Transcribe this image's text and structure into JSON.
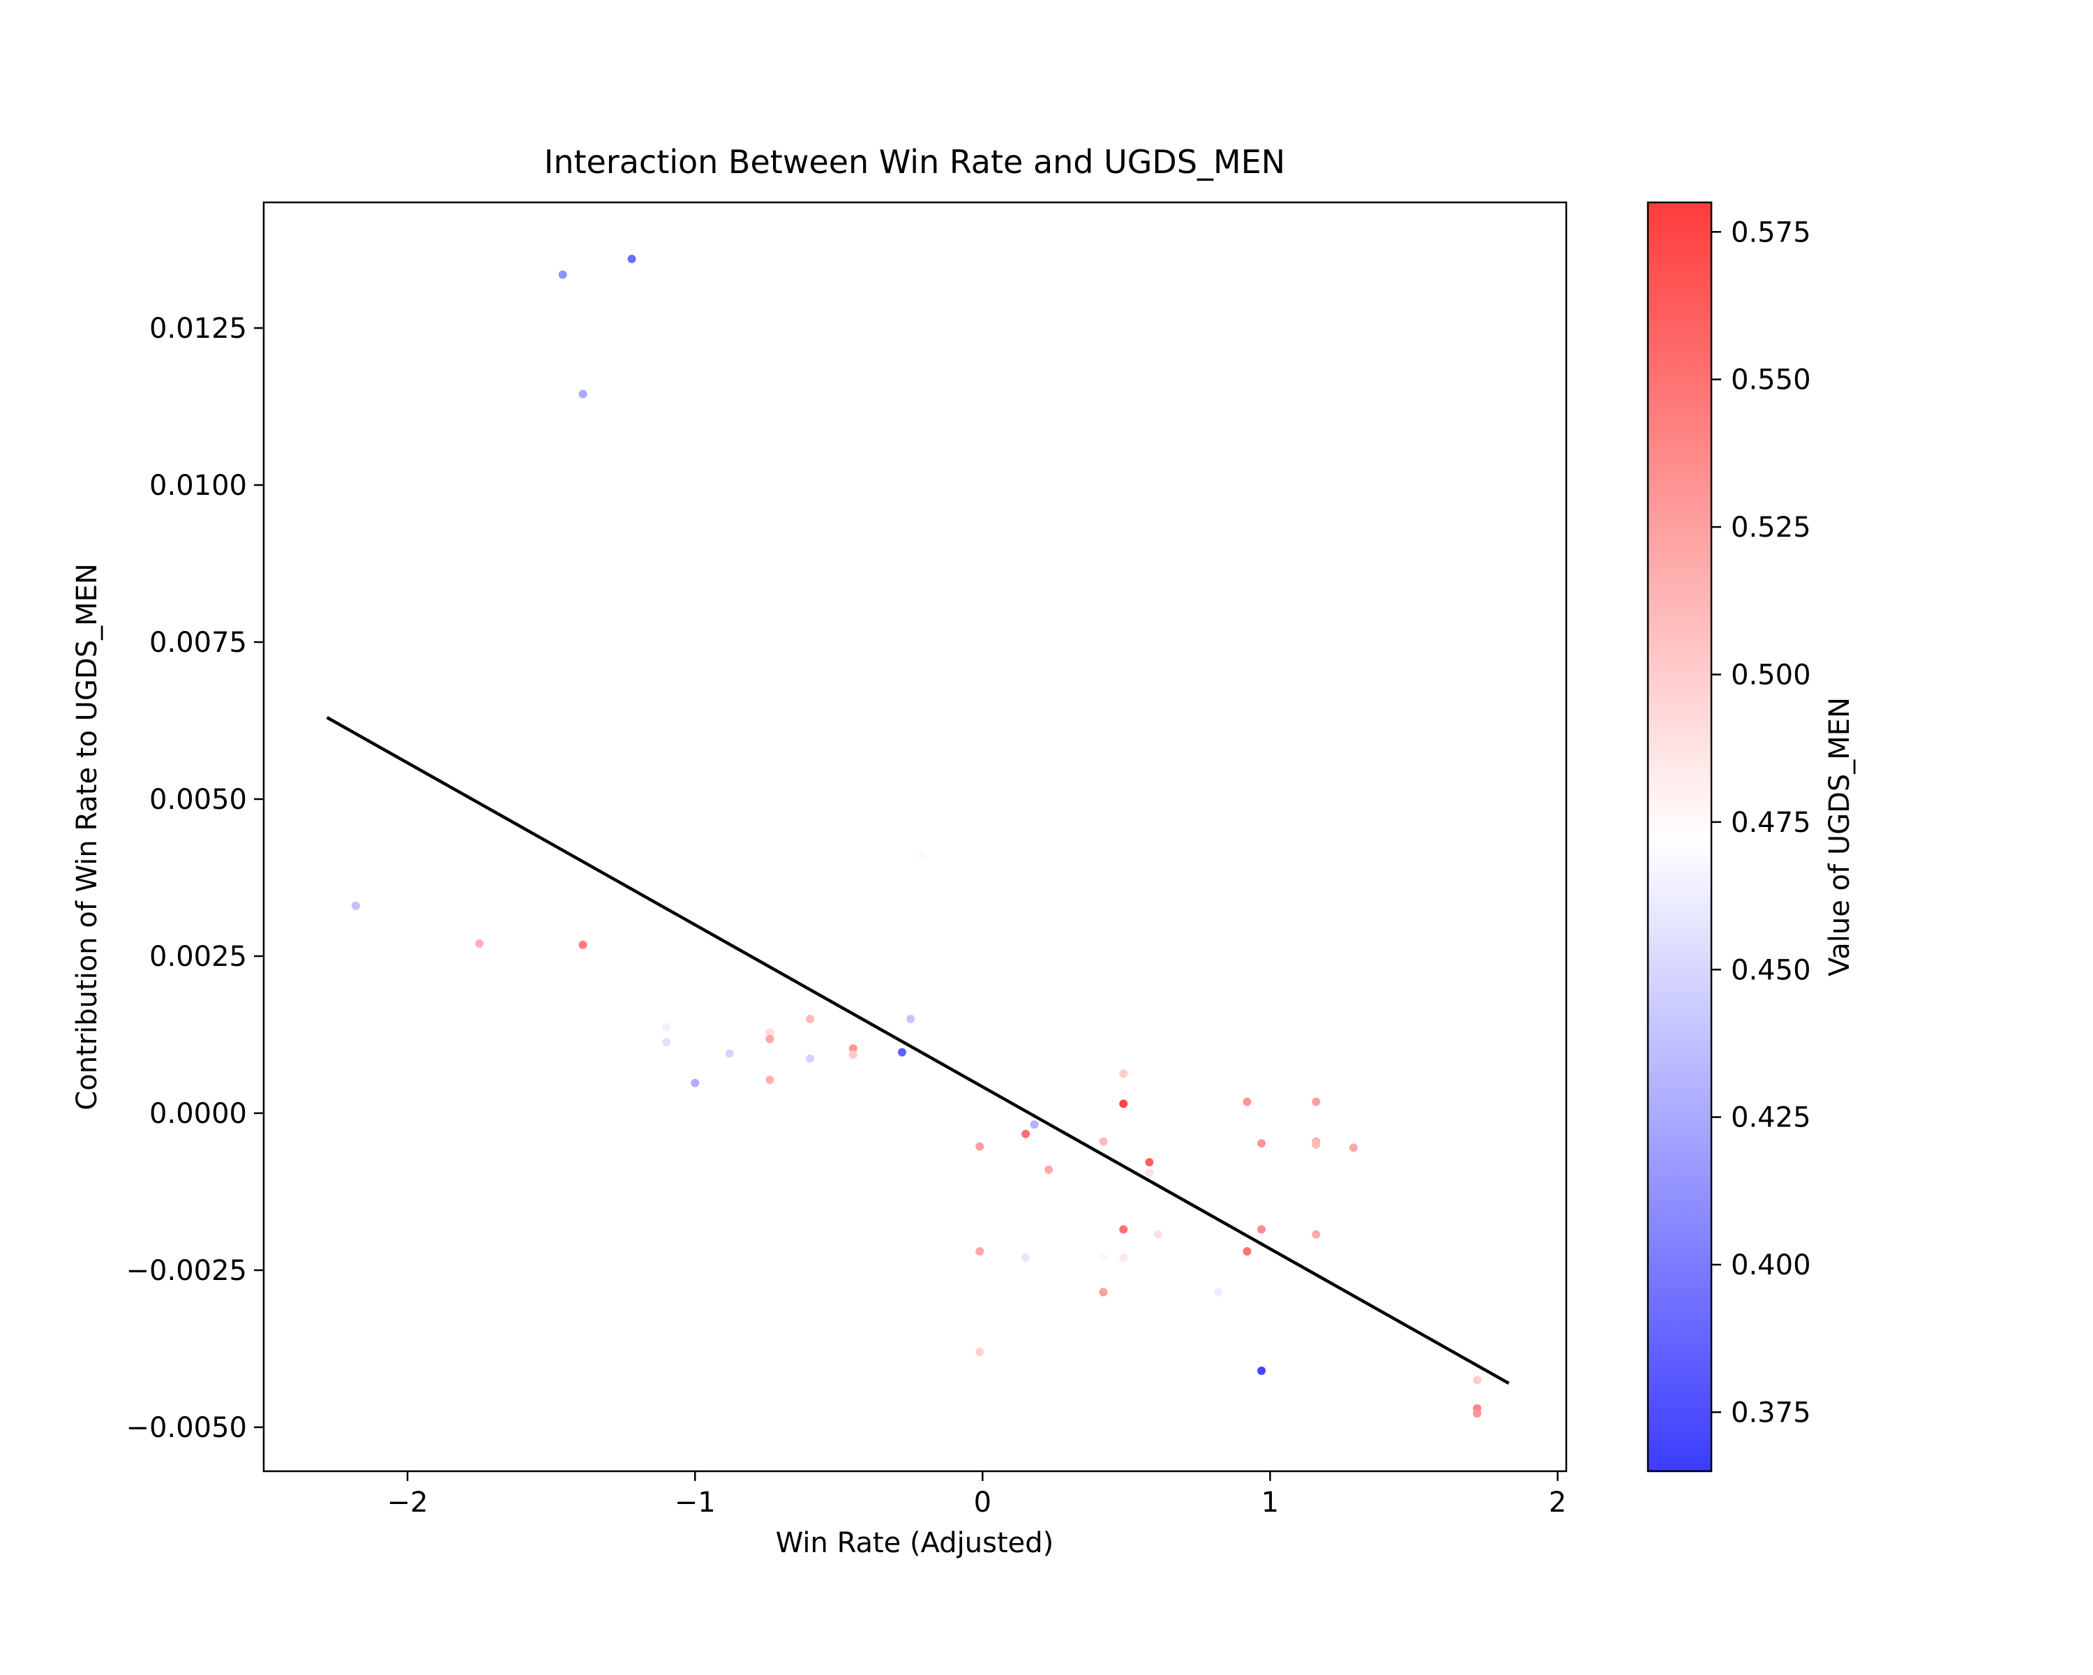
{
  "chart_data": {
    "type": "scatter",
    "title": "Interaction Between Win Rate and UGDS_MEN",
    "xlabel": "Win Rate (Adjusted)",
    "ylabel": "Contribution of Win Rate to UGDS_MEN",
    "xlim": [
      -2.5,
      2.03
    ],
    "ylim": [
      -0.0057,
      0.0145
    ],
    "xticks": [
      {
        "value": -2,
        "label": "−2"
      },
      {
        "value": -1,
        "label": "−1"
      },
      {
        "value": 0,
        "label": "0"
      },
      {
        "value": 1,
        "label": "1"
      },
      {
        "value": 2,
        "label": "2"
      }
    ],
    "yticks": [
      {
        "value": -0.005,
        "label": "−0.0050"
      },
      {
        "value": -0.0025,
        "label": "−0.0025"
      },
      {
        "value": 0.0,
        "label": "0.0000"
      },
      {
        "value": 0.0025,
        "label": "0.0025"
      },
      {
        "value": 0.005,
        "label": "0.0050"
      },
      {
        "value": 0.0075,
        "label": "0.0075"
      },
      {
        "value": 0.01,
        "label": "0.0100"
      },
      {
        "value": 0.0125,
        "label": "0.0125"
      }
    ],
    "colorbar": {
      "label": "Value of UGDS_MEN",
      "range": [
        0.365,
        0.58
      ],
      "low_color": "#3c3cff",
      "mid_color": "#ffffff",
      "high_color": "#ff3c3c",
      "mid_value": 0.472,
      "ticks": [
        {
          "value": 0.375,
          "label": "0.375"
        },
        {
          "value": 0.4,
          "label": "0.400"
        },
        {
          "value": 0.425,
          "label": "0.425"
        },
        {
          "value": 0.45,
          "label": "0.450"
        },
        {
          "value": 0.475,
          "label": "0.475"
        },
        {
          "value": 0.5,
          "label": "0.500"
        },
        {
          "value": 0.525,
          "label": "0.525"
        },
        {
          "value": 0.55,
          "label": "0.550"
        },
        {
          "value": 0.575,
          "label": "0.575"
        }
      ]
    },
    "trend_line": {
      "x": [
        -2.28,
        1.83
      ],
      "y": [
        0.0063,
        -0.0043
      ],
      "color": "#000000"
    },
    "points": [
      {
        "x": -1.46,
        "y": 0.01335,
        "c": 0.412
      },
      {
        "x": -1.22,
        "y": 0.0136,
        "c": 0.392
      },
      {
        "x": -1.39,
        "y": 0.01145,
        "c": 0.425
      },
      {
        "x": -2.18,
        "y": 0.0033,
        "c": 0.438
      },
      {
        "x": -1.75,
        "y": 0.0027,
        "c": 0.515
      },
      {
        "x": -1.39,
        "y": 0.00268,
        "c": 0.545
      },
      {
        "x": -1.1,
        "y": 0.00137,
        "c": 0.463
      },
      {
        "x": -1.1,
        "y": 0.00113,
        "c": 0.455
      },
      {
        "x": -0.88,
        "y": 0.00095,
        "c": 0.448
      },
      {
        "x": -1.0,
        "y": 0.00048,
        "c": 0.428
      },
      {
        "x": -0.74,
        "y": 0.00128,
        "c": 0.492
      },
      {
        "x": -0.74,
        "y": 0.00118,
        "c": 0.52
      },
      {
        "x": -0.74,
        "y": 0.00053,
        "c": 0.515
      },
      {
        "x": -0.6,
        "y": 0.0015,
        "c": 0.51
      },
      {
        "x": -0.6,
        "y": 0.00087,
        "c": 0.448
      },
      {
        "x": -0.45,
        "y": 0.00103,
        "c": 0.53
      },
      {
        "x": -0.45,
        "y": 0.00093,
        "c": 0.5
      },
      {
        "x": -0.28,
        "y": 0.00097,
        "c": 0.385
      },
      {
        "x": -0.25,
        "y": 0.0015,
        "c": 0.44
      },
      {
        "x": -0.21,
        "y": 0.0041,
        "c": 0.476
      },
      {
        "x": -0.01,
        "y": -0.00053,
        "c": 0.525
      },
      {
        "x": -0.01,
        "y": -0.0022,
        "c": 0.522
      },
      {
        "x": -0.01,
        "y": -0.0038,
        "c": 0.498
      },
      {
        "x": 0.15,
        "y": -0.00033,
        "c": 0.552
      },
      {
        "x": 0.18,
        "y": -0.00018,
        "c": 0.43
      },
      {
        "x": 0.23,
        "y": -0.0009,
        "c": 0.52
      },
      {
        "x": 0.15,
        "y": -0.0023,
        "c": 0.458
      },
      {
        "x": 0.49,
        "y": 0.00063,
        "c": 0.5
      },
      {
        "x": 0.49,
        "y": 0.00015,
        "c": 0.575
      },
      {
        "x": 0.42,
        "y": -0.00045,
        "c": 0.51
      },
      {
        "x": 0.58,
        "y": -0.00078,
        "c": 0.56
      },
      {
        "x": 0.58,
        "y": -0.00095,
        "c": 0.49
      },
      {
        "x": 0.49,
        "y": -0.00185,
        "c": 0.55
      },
      {
        "x": 0.61,
        "y": -0.00193,
        "c": 0.49
      },
      {
        "x": 0.42,
        "y": -0.0023,
        "c": 0.468
      },
      {
        "x": 0.49,
        "y": -0.0023,
        "c": 0.485
      },
      {
        "x": 0.42,
        "y": -0.00285,
        "c": 0.525
      },
      {
        "x": 0.82,
        "y": -0.00285,
        "c": 0.462
      },
      {
        "x": 0.92,
        "y": 0.00018,
        "c": 0.53
      },
      {
        "x": 0.97,
        "y": -0.00048,
        "c": 0.532
      },
      {
        "x": 0.97,
        "y": -0.00185,
        "c": 0.535
      },
      {
        "x": 0.92,
        "y": -0.0022,
        "c": 0.55
      },
      {
        "x": 0.97,
        "y": -0.0041,
        "c": 0.37
      },
      {
        "x": 1.16,
        "y": 0.00018,
        "c": 0.525
      },
      {
        "x": 1.16,
        "y": -0.00045,
        "c": 0.515
      },
      {
        "x": 1.16,
        "y": -0.0005,
        "c": 0.51
      },
      {
        "x": 1.29,
        "y": -0.00055,
        "c": 0.52
      },
      {
        "x": 1.16,
        "y": -0.00193,
        "c": 0.52
      },
      {
        "x": 1.72,
        "y": -0.00425,
        "c": 0.5
      },
      {
        "x": 1.72,
        "y": -0.0047,
        "c": 0.54
      },
      {
        "x": 1.72,
        "y": -0.00478,
        "c": 0.53
      }
    ]
  }
}
